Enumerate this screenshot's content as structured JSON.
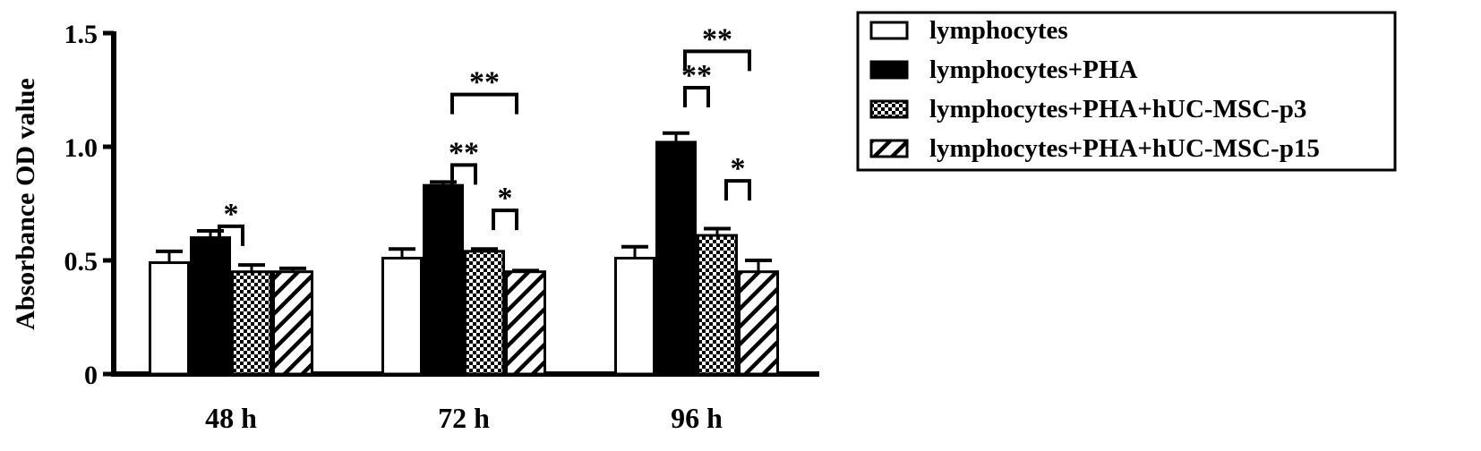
{
  "chart_data": {
    "type": "bar",
    "title": "",
    "xlabel": "",
    "ylabel": "Absorbance OD value",
    "ylim": [
      0,
      1.5
    ],
    "yticks": [
      {
        "value": 0,
        "label": "0"
      },
      {
        "value": 0.5,
        "label": "0.5"
      },
      {
        "value": 1.0,
        "label": "1.0"
      },
      {
        "value": 1.5,
        "label": "1.5"
      }
    ],
    "categories": [
      "48 h",
      "72 h",
      "96 h"
    ],
    "series": [
      {
        "name": "lymphocytes",
        "fill": "white",
        "values": [
          0.49,
          0.51,
          0.51
        ],
        "errors": [
          0.05,
          0.04,
          0.05
        ]
      },
      {
        "name": "lymphocytes+PHA",
        "fill": "black",
        "values": [
          0.6,
          0.83,
          1.02
        ],
        "errors": [
          0.03,
          0.015,
          0.04
        ]
      },
      {
        "name": "lymphocytes+PHA+hUC-MSC-p3",
        "fill": "checker",
        "values": [
          0.45,
          0.54,
          0.61
        ],
        "errors": [
          0.03,
          0.01,
          0.03
        ]
      },
      {
        "name": "lymphocytes+PHA+hUC-MSC-p15",
        "fill": "hatch",
        "values": [
          0.45,
          0.45,
          0.45
        ],
        "errors": [
          0.015,
          0.005,
          0.05
        ]
      }
    ],
    "legend_position": "top-right",
    "grid": false,
    "significance": [
      {
        "category": 0,
        "from": 1,
        "to": 2,
        "label": "*"
      },
      {
        "category": 1,
        "from": 1,
        "to": 2,
        "label": "**"
      },
      {
        "category": 1,
        "from": 1,
        "to": 3,
        "label": "**"
      },
      {
        "category": 1,
        "from": 2,
        "to": 3,
        "label": "*"
      },
      {
        "category": 2,
        "from": 1,
        "to": 2,
        "label": "**"
      },
      {
        "category": 2,
        "from": 1,
        "to": 3,
        "label": "**"
      },
      {
        "category": 2,
        "from": 2,
        "to": 3,
        "label": "*"
      }
    ]
  }
}
